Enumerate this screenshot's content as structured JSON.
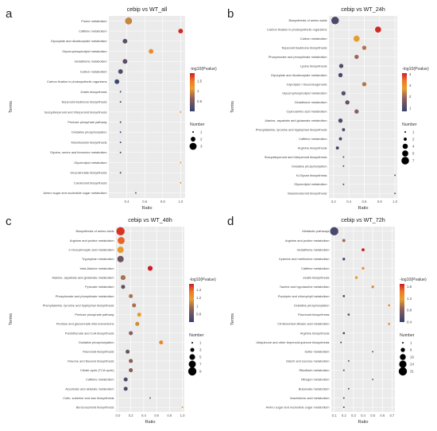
{
  "chart_data": [
    {
      "type": "scatter",
      "panel_label": "a",
      "title": "cebip vs WT_all",
      "xlabel": "Ratio",
      "ylabel": "Terms",
      "xlim": [
        0.2,
        1.05
      ],
      "xticks": [
        0.4,
        0.6,
        0.8,
        1.0
      ],
      "xtick_labels": [
        "0.4",
        "0.6",
        "0.8",
        "1.0"
      ],
      "color_range": [
        0,
        1.9
      ],
      "size_range": [
        1,
        3.6
      ],
      "color_legend": {
        "title": "-log10(Pvalue)",
        "ticks": [
          1.5,
          1.0,
          0.5
        ]
      },
      "size_legend": {
        "title": "Number",
        "values": [
          1,
          2,
          3
        ]
      },
      "points": [
        {
          "term": "Purine metabolism",
          "ratio": 0.42,
          "pvalue_log": 0.95,
          "number": 3
        },
        {
          "term": "Caffeine metabolism",
          "ratio": 1.0,
          "pvalue_log": 1.85,
          "number": 2
        },
        {
          "term": "Glyoxylate and dicarboxylate metabolism",
          "ratio": 0.38,
          "pvalue_log": 0.3,
          "number": 2
        },
        {
          "term": "Glycerophospholipid metabolism",
          "ratio": 0.67,
          "pvalue_log": 1.35,
          "number": 2
        },
        {
          "term": "Glutathione metabolism",
          "ratio": 0.38,
          "pvalue_log": 0.3,
          "number": 2
        },
        {
          "term": "Carbon metabolism",
          "ratio": 0.33,
          "pvalue_log": 0.2,
          "number": 2
        },
        {
          "term": "Carbon fixation in photosynthetic organisms",
          "ratio": 0.29,
          "pvalue_log": 0.05,
          "number": 2
        },
        {
          "term": "Zeatin biosynthesis",
          "ratio": 0.33,
          "pvalue_log": 0.1,
          "number": 1
        },
        {
          "term": "Terpenoid backbone biosynthesis",
          "ratio": 0.33,
          "pvalue_log": 0.1,
          "number": 1
        },
        {
          "term": "Sesquiterpenoid and triterpenoid biosynthesis",
          "ratio": 1.0,
          "pvalue_log": 1.2,
          "number": 1
        },
        {
          "term": "Pentose phosphate pathway",
          "ratio": 0.33,
          "pvalue_log": 0.1,
          "number": 1
        },
        {
          "term": "Oxidative phosphorylation",
          "ratio": 0.33,
          "pvalue_log": 0.1,
          "number": 1
        },
        {
          "term": "Monobactam biosynthesis",
          "ratio": 0.33,
          "pvalue_log": 0.1,
          "number": 1
        },
        {
          "term": "Glycine, serine and threonine metabolism",
          "ratio": 0.33,
          "pvalue_log": 0.1,
          "number": 1
        },
        {
          "term": "Glycerolipid metabolism",
          "ratio": 1.0,
          "pvalue_log": 1.2,
          "number": 1
        },
        {
          "term": "Glucosinolate biosynthesis",
          "ratio": 0.33,
          "pvalue_log": 0.1,
          "number": 1
        },
        {
          "term": "Carotenoid biosynthesis",
          "ratio": 1.0,
          "pvalue_log": 1.2,
          "number": 1
        },
        {
          "term": "Amino sugar and nucleotide sugar metabolism",
          "ratio": 0.5,
          "pvalue_log": 0.5,
          "number": 1
        }
      ]
    },
    {
      "type": "scatter",
      "panel_label": "b",
      "title": "cebip vs WT_24h",
      "xlabel": "Ratio",
      "ylabel": "Terms",
      "xlim": [
        0.14,
        1.03
      ],
      "xticks": [
        0.2,
        0.4,
        0.6,
        0.8,
        1.0
      ],
      "xtick_labels": [
        "0.2",
        "0.4",
        "0.6",
        "0.8",
        "1.0"
      ],
      "color_range": [
        0.7,
        4.1
      ],
      "size_range": [
        1,
        8
      ],
      "color_legend": {
        "title": "-log10(Pvalue)",
        "ticks": [
          4,
          3,
          2,
          1
        ]
      },
      "size_legend": {
        "title": "Number",
        "values": [
          1,
          2,
          4,
          5,
          7
        ]
      },
      "points": [
        {
          "term": "Biosynthesis of amino acids",
          "ratio": 0.22,
          "pvalue_log": 1.0,
          "number": 7
        },
        {
          "term": "Carbon fixation in photosynthetic organisms",
          "ratio": 0.78,
          "pvalue_log": 4.0,
          "number": 5
        },
        {
          "term": "Carbon metabolism",
          "ratio": 0.5,
          "pvalue_log": 2.7,
          "number": 5
        },
        {
          "term": "Terpenoid backbone biosynthesis",
          "ratio": 0.6,
          "pvalue_log": 2.2,
          "number": 3
        },
        {
          "term": "Phosphonate and phosphinate metabolism",
          "ratio": 0.5,
          "pvalue_log": 2.0,
          "number": 3
        },
        {
          "term": "Lysine biosynthesis",
          "ratio": 0.3,
          "pvalue_log": 1.1,
          "number": 3
        },
        {
          "term": "Glyoxylate and dicarboxylate metabolism",
          "ratio": 0.29,
          "pvalue_log": 1.0,
          "number": 3
        },
        {
          "term": "Glycolysis / Gluconeogenesis",
          "ratio": 0.6,
          "pvalue_log": 2.2,
          "number": 3
        },
        {
          "term": "Glycerophospholipid metabolism",
          "ratio": 0.33,
          "pvalue_log": 1.2,
          "number": 3
        },
        {
          "term": "Glutathione metabolism",
          "ratio": 0.38,
          "pvalue_log": 1.3,
          "number": 3
        },
        {
          "term": "Cyanoamino acid metabolism",
          "ratio": 0.5,
          "pvalue_log": 1.8,
          "number": 3
        },
        {
          "term": "Alanine, aspartate and glutamate metabolism",
          "ratio": 0.29,
          "pvalue_log": 1.0,
          "number": 3
        },
        {
          "term": "Phenylalanine, tyrosine and tryptophan biosynthesis",
          "ratio": 0.33,
          "pvalue_log": 1.1,
          "number": 2
        },
        {
          "term": "Caffeine metabolism",
          "ratio": 0.29,
          "pvalue_log": 0.9,
          "number": 2
        },
        {
          "term": "Arginine biosynthesis",
          "ratio": 0.25,
          "pvalue_log": 0.8,
          "number": 2
        },
        {
          "term": "Sesquiterpenoid and triterpenoid biosynthesis",
          "ratio": 0.33,
          "pvalue_log": 1.0,
          "number": 1
        },
        {
          "term": "Oxidative phosphorylation",
          "ratio": 0.33,
          "pvalue_log": 1.0,
          "number": 1
        },
        {
          "term": "N-Glycan biosynthesis",
          "ratio": 1.0,
          "pvalue_log": 1.3,
          "number": 1
        },
        {
          "term": "Glycerolipid metabolism",
          "ratio": 0.33,
          "pvalue_log": 1.0,
          "number": 1
        },
        {
          "term": "Brassinosteroid biosynthesis",
          "ratio": 1.0,
          "pvalue_log": 1.3,
          "number": 1
        }
      ]
    },
    {
      "type": "scatter",
      "panel_label": "c",
      "title": "cebip vs WT_48h",
      "xlabel": "Ratio",
      "ylabel": "Terms",
      "xlim": [
        -0.03,
        1.03
      ],
      "xticks": [
        0.0,
        0.2,
        0.4,
        0.6,
        0.8,
        1.0
      ],
      "xtick_labels": [
        "0.0",
        "0.2",
        "0.4",
        "0.6",
        "0.8",
        "1.0"
      ],
      "color_range": [
        0.6,
        1.55
      ],
      "size_range": [
        1,
        9
      ],
      "color_legend": {
        "title": "-log10(Pvalue)",
        "ticks": [
          1.4,
          1.2,
          1.0,
          0.8
        ]
      },
      "size_legend": {
        "title": "Number",
        "values": [
          1,
          3,
          5,
          7,
          9
        ]
      },
      "points": [
        {
          "term": "Biosynthesis of amino acids",
          "ratio": 0.04,
          "pvalue_log": 1.5,
          "number": 9
        },
        {
          "term": "Arginine and proline metabolism",
          "ratio": 0.05,
          "pvalue_log": 1.4,
          "number": 7
        },
        {
          "term": "2-Oxocarboxylic acid metabolism",
          "ratio": 0.04,
          "pvalue_log": 1.2,
          "number": 6
        },
        {
          "term": "Tryptophan metabolism",
          "ratio": 0.04,
          "pvalue_log": 0.8,
          "number": 6
        },
        {
          "term": "beta-Alanine metabolism",
          "ratio": 0.5,
          "pvalue_log": 1.55,
          "number": 4
        },
        {
          "term": "Alanine, aspartate and glutamate metabolism",
          "ratio": 0.08,
          "pvalue_log": 1.0,
          "number": 4
        },
        {
          "term": "Pyruvate metabolism",
          "ratio": 0.08,
          "pvalue_log": 0.75,
          "number": 3
        },
        {
          "term": "Phosphonate and phosphinate metabolism",
          "ratio": 0.2,
          "pvalue_log": 1.0,
          "number": 3
        },
        {
          "term": "Phenylalanine, tyrosine and tryptophan biosynthesis",
          "ratio": 0.25,
          "pvalue_log": 1.0,
          "number": 3
        },
        {
          "term": "Pentose phosphate pathway",
          "ratio": 0.33,
          "pvalue_log": 1.2,
          "number": 3
        },
        {
          "term": "Pentose and glucuronate interconversions",
          "ratio": 0.3,
          "pvalue_log": 1.1,
          "number": 3
        },
        {
          "term": "Pantothenate and CoA biosynthesis",
          "ratio": 0.2,
          "pvalue_log": 0.9,
          "number": 3
        },
        {
          "term": "Oxidative phosphorylation",
          "ratio": 0.67,
          "pvalue_log": 1.3,
          "number": 3
        },
        {
          "term": "Flavonoid biosynthesis",
          "ratio": 0.15,
          "pvalue_log": 0.8,
          "number": 3
        },
        {
          "term": "Flavone and flavonol biosynthesis",
          "ratio": 0.2,
          "pvalue_log": 0.9,
          "number": 3
        },
        {
          "term": "Citrate cycle (TCA cycle)",
          "ratio": 0.2,
          "pvalue_log": 0.9,
          "number": 3
        },
        {
          "term": "Caffeine metabolism",
          "ratio": 0.12,
          "pvalue_log": 0.7,
          "number": 3
        },
        {
          "term": "Ascorbate and aldarate metabolism",
          "ratio": 0.12,
          "pvalue_log": 0.7,
          "number": 3
        },
        {
          "term": "Cutin, suberine and wax biosynthesis",
          "ratio": 0.5,
          "pvalue_log": 0.9,
          "number": 1
        },
        {
          "term": "Benzoxazinoid biosynthesis",
          "ratio": 1.0,
          "pvalue_log": 1.2,
          "number": 1
        }
      ]
    },
    {
      "type": "scatter",
      "panel_label": "d",
      "title": "cebip vs WT_72h",
      "xlabel": "Ratio",
      "ylabel": "Terms",
      "xlim": [
        0.07,
        0.73
      ],
      "xticks": [
        0.1,
        0.2,
        0.3,
        0.4,
        0.5,
        0.6,
        0.7
      ],
      "xtick_labels": [
        "0.1",
        "0.2",
        "0.3",
        "0.4",
        "0.5",
        "0.6",
        "0.7"
      ],
      "color_range": [
        0.4,
        1.7
      ],
      "size_range": [
        1,
        31
      ],
      "color_legend": {
        "title": "-log10(Pvalue)",
        "ticks": [
          1.6,
          1.2,
          0.8,
          0.4
        ]
      },
      "size_legend": {
        "title": "Number",
        "values": [
          1,
          8,
          16,
          24,
          31
        ]
      },
      "points": [
        {
          "term": "Metabolic pathways",
          "ratio": 0.1,
          "pvalue_log": 0.5,
          "number": 31
        },
        {
          "term": "Arginine and proline metabolism",
          "ratio": 0.2,
          "pvalue_log": 0.9,
          "number": 4
        },
        {
          "term": "Glutathione metabolism",
          "ratio": 0.4,
          "pvalue_log": 1.7,
          "number": 4
        },
        {
          "term": "Cysteine and methionine metabolism",
          "ratio": 0.2,
          "pvalue_log": 0.5,
          "number": 3
        },
        {
          "term": "Caffeine metabolism",
          "ratio": 0.4,
          "pvalue_log": 1.3,
          "number": 3
        },
        {
          "term": "Zeatin biosynthesis",
          "ratio": 0.33,
          "pvalue_log": 1.2,
          "number": 3
        },
        {
          "term": "Taurine and hypotaurine metabolism",
          "ratio": 0.5,
          "pvalue_log": 1.1,
          "number": 3
        },
        {
          "term": "Porphyrin and chlorophyll metabolism",
          "ratio": 0.2,
          "pvalue_log": 0.5,
          "number": 2
        },
        {
          "term": "Oxidative phosphorylation",
          "ratio": 0.67,
          "pvalue_log": 1.3,
          "number": 2
        },
        {
          "term": "Flavonoid biosynthesis",
          "ratio": 0.25,
          "pvalue_log": 0.6,
          "number": 2
        },
        {
          "term": "C5-Branched dibasic acid metabolism",
          "ratio": 0.67,
          "pvalue_log": 1.3,
          "number": 2
        },
        {
          "term": "Arginine biosynthesis",
          "ratio": 0.2,
          "pvalue_log": 0.5,
          "number": 2
        },
        {
          "term": "Ubiquinone and other terpenoid-quinone biosynthesis",
          "ratio": 0.17,
          "pvalue_log": 0.5,
          "number": 1
        },
        {
          "term": "Sulfur metabolism",
          "ratio": 0.5,
          "pvalue_log": 0.8,
          "number": 1
        },
        {
          "term": "Starch and sucrose metabolism",
          "ratio": 0.25,
          "pvalue_log": 0.6,
          "number": 1
        },
        {
          "term": "Riboflavin metabolism",
          "ratio": 0.2,
          "pvalue_log": 0.5,
          "number": 1
        },
        {
          "term": "Nitrogen metabolism",
          "ratio": 0.5,
          "pvalue_log": 0.8,
          "number": 1
        },
        {
          "term": "Butanoate metabolism",
          "ratio": 0.25,
          "pvalue_log": 0.6,
          "number": 1
        },
        {
          "term": "Arachidonic acid metabolism",
          "ratio": 0.2,
          "pvalue_log": 0.5,
          "number": 1
        },
        {
          "term": "Amino sugar and nucleotide sugar metabolism",
          "ratio": 0.2,
          "pvalue_log": 0.5,
          "number": 1
        }
      ]
    }
  ]
}
